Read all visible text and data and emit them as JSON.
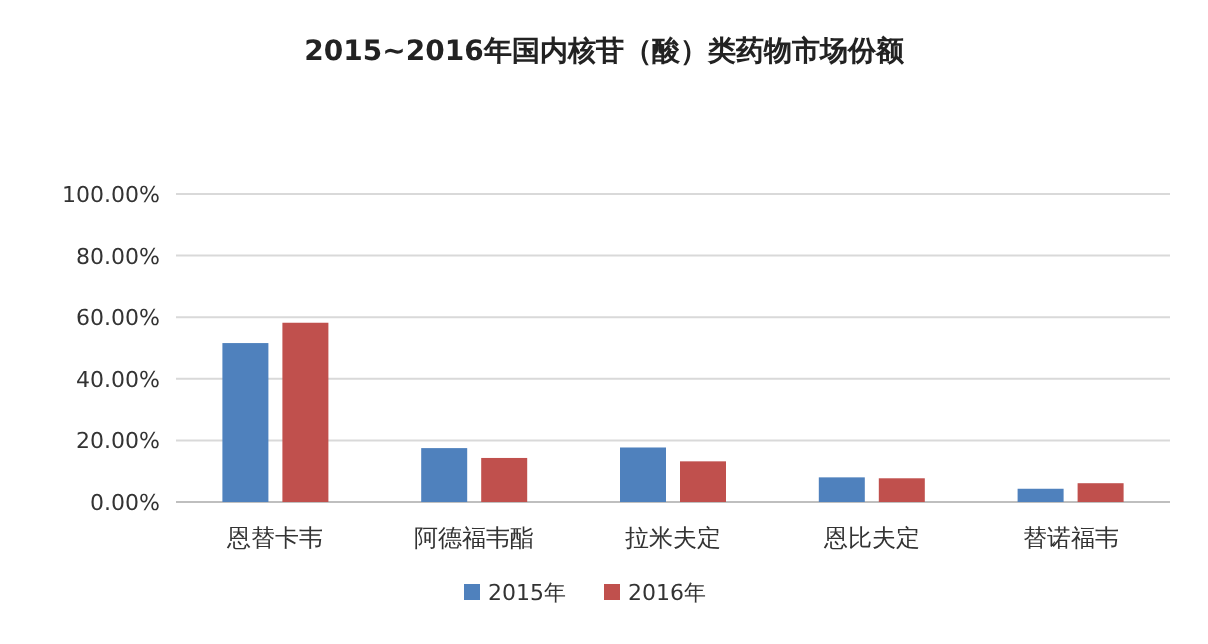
{
  "chart_data": {
    "type": "bar",
    "title": "2015~2016年国内核苷（酸）类药物市场份额",
    "categories": [
      "恩替卡韦",
      "阿德福韦酯",
      "拉米夫定",
      "恩比夫定",
      "替诺福韦"
    ],
    "series": [
      {
        "name": "2015年",
        "color": "#4f81bd",
        "values": [
          51.6,
          17.5,
          17.7,
          8.0,
          4.3
        ]
      },
      {
        "name": "2016年",
        "color": "#c0504d",
        "values": [
          58.2,
          14.3,
          13.2,
          7.7,
          6.1
        ]
      }
    ],
    "ylim": [
      0,
      100
    ],
    "yticks": [
      {
        "value": 0,
        "label": "0.00%"
      },
      {
        "value": 20,
        "label": "20.00%"
      },
      {
        "value": 40,
        "label": "40.00%"
      },
      {
        "value": 60,
        "label": "60.00%"
      },
      {
        "value": 80,
        "label": "80.00%"
      },
      {
        "value": 100,
        "label": "100.00%"
      }
    ],
    "grid": "y",
    "legend": "bottom"
  }
}
